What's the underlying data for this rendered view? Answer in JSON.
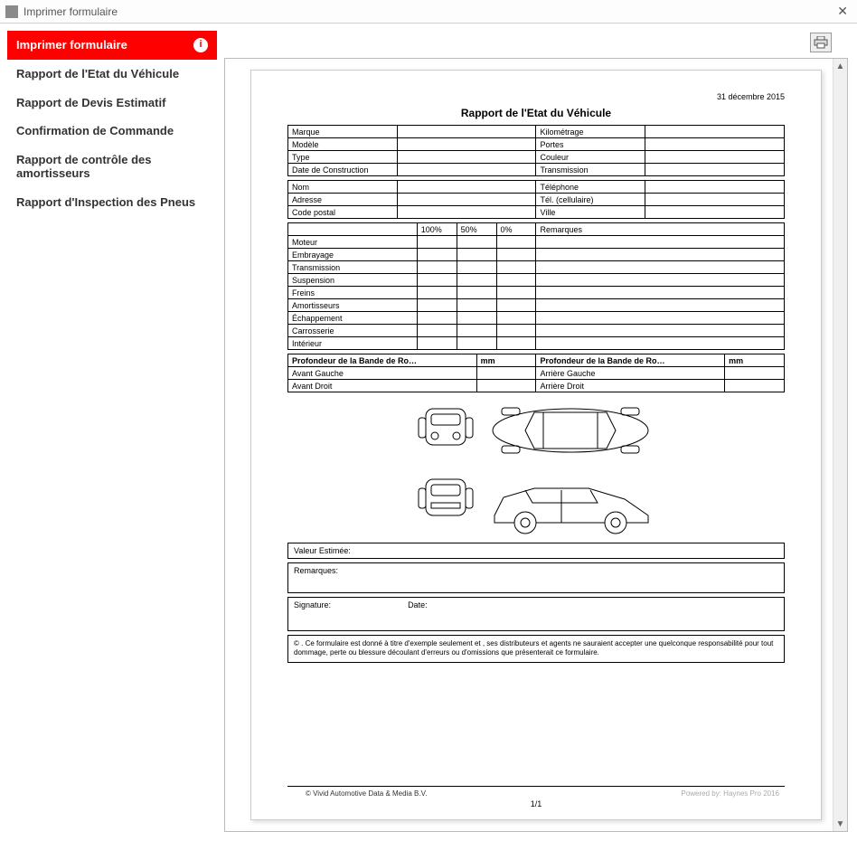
{
  "window": {
    "title": "Imprimer formulaire"
  },
  "sidebar": {
    "items": [
      {
        "label": "Imprimer formulaire",
        "active": true,
        "info": true
      },
      {
        "label": "Rapport de l'Etat du Véhicule",
        "active": false
      },
      {
        "label": "Rapport de Devis Estimatif",
        "active": false
      },
      {
        "label": "Confirmation de Commande",
        "active": false
      },
      {
        "label": "Rapport de contrôle des amortisseurs",
        "active": false
      },
      {
        "label": "Rapport d'Inspection des Pneus",
        "active": false
      }
    ]
  },
  "document": {
    "date": "31 décembre 2015",
    "title": "Rapport de l'Etat du Véhicule",
    "vehicle_rows": [
      [
        "Marque",
        "Kilométrage"
      ],
      [
        "Modèle",
        "Portes"
      ],
      [
        "Type",
        "Couleur"
      ],
      [
        "Date de Construction",
        "Transmission"
      ]
    ],
    "client_rows": [
      [
        "Nom",
        "Téléphone"
      ],
      [
        "Adresse",
        "Tél. (cellulaire)"
      ],
      [
        "Code postal",
        "Ville"
      ]
    ],
    "check_header": [
      "",
      "100%",
      "50%",
      "0%",
      "Remarques"
    ],
    "check_rows": [
      "Moteur",
      "Embrayage",
      "Transmission",
      "Suspension",
      "Freins",
      "Amortisseurs",
      "Échappement",
      "Carrosserie",
      "Intérieur"
    ],
    "tire_header": [
      "Profondeur de la Bande de Ro…",
      "mm",
      "Profondeur de la Bande de Ro…",
      "mm"
    ],
    "tire_rows": [
      [
        "Avant Gauche",
        "",
        "Arrière Gauche",
        ""
      ],
      [
        "Avant Droit",
        "",
        "Arrière Droit",
        ""
      ]
    ],
    "box_value": "Valeur Estimée:",
    "box_remarks": "Remarques:",
    "box_signature_label": "Signature:",
    "box_date_label": "Date:",
    "disclaimer": "© . Ce formulaire est donné à titre d'exemple seulement et , ses distributeurs et agents ne sauraient accepter une quelconque responsabilité pour tout dommage, perte ou blessure découlant d'erreurs ou d'omissions que présenterait ce formulaire.",
    "footer_left": "© Vivid Automotive Data & Media B.V.",
    "footer_right": "Powered by: Haynes Pro 2016",
    "page_num": "1/1"
  },
  "style": {
    "active_bg": "#ff0000",
    "active_fg": "#ffffff",
    "border_color": "#000000",
    "page_shadow": "rgba(0,0,0,0.15)"
  }
}
